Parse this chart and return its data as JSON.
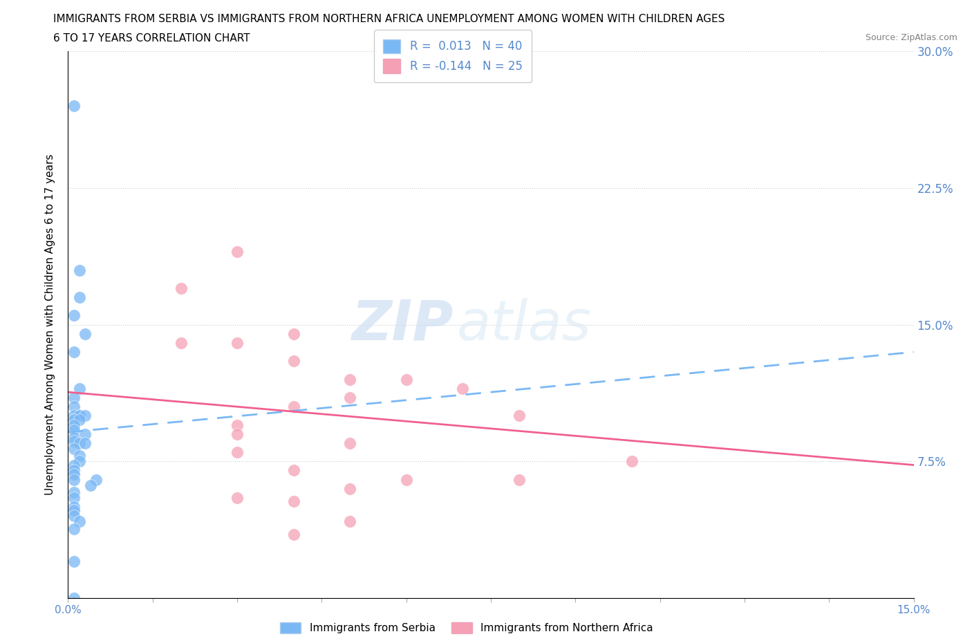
{
  "title_line1": "IMMIGRANTS FROM SERBIA VS IMMIGRANTS FROM NORTHERN AFRICA UNEMPLOYMENT AMONG WOMEN WITH CHILDREN AGES",
  "title_line2": "6 TO 17 YEARS CORRELATION CHART",
  "source": "Source: ZipAtlas.com",
  "xlabel_serbia": "Immigrants from Serbia",
  "xlabel_nafric": "Immigrants from Northern Africa",
  "ylabel": "Unemployment Among Women with Children Ages 6 to 17 years",
  "r_serbia": 0.013,
  "n_serbia": 40,
  "r_nafric": -0.144,
  "n_nafric": 25,
  "xlim": [
    0.0,
    0.15
  ],
  "ylim": [
    0.0,
    0.3
  ],
  "yticks": [
    0.0,
    0.075,
    0.15,
    0.225,
    0.3
  ],
  "ytick_labels": [
    "",
    "7.5%",
    "15.0%",
    "22.5%",
    "30.0%"
  ],
  "xticks": [
    0.0,
    0.015,
    0.03,
    0.045,
    0.06,
    0.075,
    0.09,
    0.105,
    0.12,
    0.135,
    0.15
  ],
  "xtick_labels": [
    "0.0%",
    "",
    "",
    "",
    "",
    "",
    "",
    "",
    "",
    "",
    "15.0%"
  ],
  "color_serbia": "#7ab8f5",
  "color_nafric": "#f5a0b5",
  "line_color_serbia": "#7ab8f5",
  "line_color_nafric": "#f06090",
  "axis_color": "#5588cc",
  "watermark_text": "ZIP",
  "watermark_text2": "atlas",
  "serbia_x": [
    0.001,
    0.002,
    0.002,
    0.001,
    0.003,
    0.001,
    0.002,
    0.001,
    0.001,
    0.002,
    0.001,
    0.002,
    0.003,
    0.001,
    0.002,
    0.001,
    0.001,
    0.003,
    0.001,
    0.001,
    0.002,
    0.003,
    0.001,
    0.002,
    0.002,
    0.001,
    0.001,
    0.001,
    0.001,
    0.005,
    0.004,
    0.001,
    0.001,
    0.001,
    0.001,
    0.001,
    0.002,
    0.001,
    0.001,
    0.001
  ],
  "serbia_y": [
    0.27,
    0.18,
    0.165,
    0.155,
    0.145,
    0.135,
    0.115,
    0.11,
    0.105,
    0.1,
    0.1,
    0.1,
    0.1,
    0.098,
    0.098,
    0.095,
    0.092,
    0.09,
    0.088,
    0.086,
    0.085,
    0.085,
    0.082,
    0.078,
    0.075,
    0.073,
    0.07,
    0.068,
    0.065,
    0.065,
    0.062,
    0.058,
    0.055,
    0.05,
    0.048,
    0.045,
    0.042,
    0.038,
    0.02,
    0.0
  ],
  "nafric_x": [
    0.02,
    0.02,
    0.03,
    0.03,
    0.04,
    0.04,
    0.04,
    0.05,
    0.05,
    0.07,
    0.08,
    0.08,
    0.03,
    0.05,
    0.06,
    0.03,
    0.03,
    0.04,
    0.05,
    0.06,
    0.1,
    0.03,
    0.04,
    0.05,
    0.04
  ],
  "nafric_y": [
    0.17,
    0.14,
    0.19,
    0.14,
    0.145,
    0.13,
    0.105,
    0.12,
    0.11,
    0.115,
    0.1,
    0.065,
    0.095,
    0.085,
    0.12,
    0.09,
    0.08,
    0.07,
    0.06,
    0.065,
    0.075,
    0.055,
    0.053,
    0.042,
    0.035
  ],
  "serbia_line_x0": 0.0,
  "serbia_line_x1": 0.15,
  "serbia_line_y0": 0.091,
  "serbia_line_y1": 0.135,
  "nafric_line_x0": 0.0,
  "nafric_line_x1": 0.15,
  "nafric_line_y0": 0.113,
  "nafric_line_y1": 0.073
}
